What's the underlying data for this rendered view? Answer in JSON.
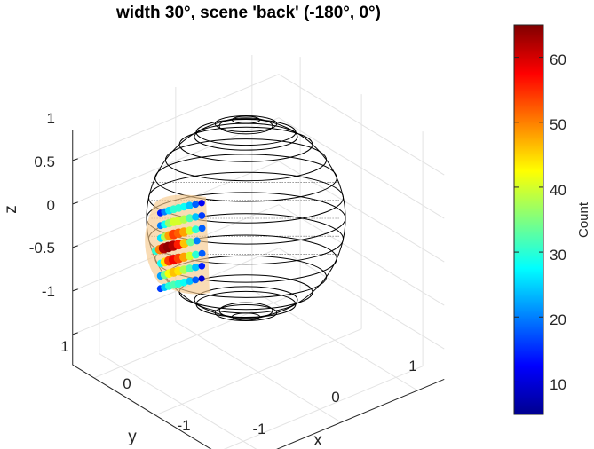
{
  "chart_data": {
    "type": "scatter",
    "title": "width 30°, scene 'back' (-180°, 0°)",
    "xlabel": "x",
    "ylabel": "y",
    "zlabel": "z",
    "x_ticks": [
      "-1",
      "0",
      "1"
    ],
    "y_ticks": [
      "-1",
      "0",
      "1"
    ],
    "z_ticks": [
      "-1",
      "-0.5",
      "0",
      "0.5",
      "1"
    ],
    "colorbar": {
      "label": "Count",
      "ticks": [
        "10",
        "20",
        "30",
        "40",
        "50",
        "60"
      ],
      "range": [
        5,
        65
      ],
      "colormap": "jet"
    },
    "grid": true,
    "scene_center_deg": {
      "azimuth": -180,
      "elevation": 0
    },
    "width_deg": 30,
    "rows": [
      {
        "elevation_deg": 20,
        "counts": [
          14,
          20,
          26,
          30,
          30,
          28,
          24,
          18,
          12
        ]
      },
      {
        "elevation_deg": 12,
        "counts": [
          20,
          28,
          36,
          40,
          40,
          38,
          32,
          24,
          16
        ]
      },
      {
        "elevation_deg": 4,
        "counts": [
          26,
          38,
          48,
          54,
          52,
          48,
          40,
          30,
          18
        ]
      },
      {
        "elevation_deg": -4,
        "counts": [
          30,
          50,
          62,
          64,
          62,
          56,
          46,
          34,
          20
        ]
      },
      {
        "elevation_deg": -12,
        "counts": [
          28,
          44,
          54,
          58,
          54,
          48,
          40,
          30,
          18
        ]
      },
      {
        "elevation_deg": -20,
        "counts": [
          22,
          34,
          42,
          46,
          44,
          38,
          32,
          24,
          14
        ]
      },
      {
        "elevation_deg": -28,
        "counts": [
          16,
          24,
          30,
          32,
          30,
          28,
          24,
          18,
          10
        ]
      }
    ]
  },
  "colors": {
    "highlight_patch": "#f6c98d",
    "sphere_wire": "#000000",
    "grid": "#e3e3e3",
    "axis": "#262626"
  }
}
